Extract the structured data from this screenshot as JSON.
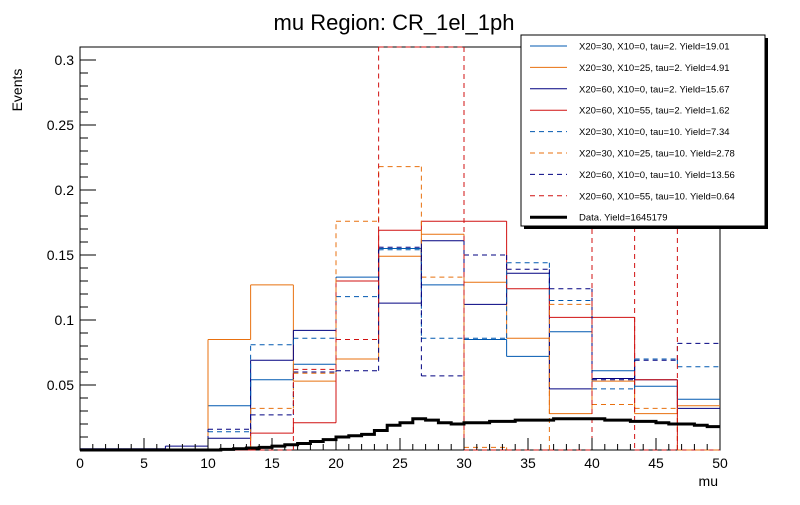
{
  "chart_data": {
    "type": "histogram-steps",
    "title": "mu Region: CR_1el_1ph",
    "xlabel": "mu",
    "ylabel": "Events",
    "xlim": [
      0,
      50
    ],
    "ylim": [
      0,
      0.31
    ],
    "x_ticks": [
      0,
      5,
      10,
      15,
      20,
      25,
      30,
      35,
      40,
      45,
      50
    ],
    "y_ticks": [
      0.05,
      0.1,
      0.15,
      0.2,
      0.25,
      0.3
    ],
    "bin_edges": [
      0,
      3.33,
      6.67,
      10,
      13.33,
      16.67,
      20,
      23.33,
      26.67,
      30,
      33.33,
      36.67,
      40,
      43.33,
      46.67,
      50
    ],
    "series": [
      {
        "name": "X20=30, X10=0, tau=2. Yield=19.01",
        "color": "#0058b0",
        "dash": "solid",
        "values": [
          0,
          0,
          0,
          0.034,
          0.054,
          0.066,
          0.133,
          0.155,
          0.127,
          0.085,
          0.072,
          0.091,
          0.061,
          0.049,
          0.039
        ]
      },
      {
        "name": "X20=30, X10=25, tau=2. Yield=4.91",
        "color": "#e8700f",
        "dash": "solid",
        "values": [
          0,
          0,
          0,
          0.085,
          0.127,
          0.053,
          0.07,
          0.149,
          0.166,
          0.129,
          0.086,
          0.028,
          0.053,
          0.028,
          0.034
        ]
      },
      {
        "name": "X20=60, X10=0, tau=2. Yield=15.67",
        "color": "#000080",
        "dash": "solid",
        "values": [
          0.001,
          0.001,
          0.003,
          0.009,
          0.069,
          0.092,
          0.13,
          0.113,
          0.161,
          0.112,
          0.136,
          0.047,
          0.055,
          0.054,
          0.032
        ]
      },
      {
        "name": "X20=60, X10=55, tau=2. Yield=1.62",
        "color": "#d01010",
        "dash": "solid",
        "values": [
          0,
          0,
          0,
          0,
          0.013,
          0.021,
          0.13,
          0.169,
          0.176,
          0.176,
          0.124,
          0.102,
          0.102,
          0.054,
          0
        ]
      },
      {
        "name": "X20=30, X10=0, tau=10. Yield=7.34",
        "color": "#0058b0",
        "dash": "dashed",
        "values": [
          0,
          0,
          0,
          0.014,
          0.081,
          0.086,
          0.118,
          0.154,
          0.086,
          0.086,
          0.144,
          0.115,
          0.047,
          0.07,
          0.064
        ]
      },
      {
        "name": "X20=30, X10=25, tau=10. Yield=2.78",
        "color": "#e8700f",
        "dash": "dashed",
        "values": [
          0,
          0,
          0,
          0,
          0.032,
          0.059,
          0.176,
          0.218,
          0.133,
          0.002,
          0,
          0.112,
          0.035,
          0.032,
          0
        ]
      },
      {
        "name": "X20=60, X10=0, tau=10. Yield=13.56",
        "color": "#000080",
        "dash": "dashed",
        "values": [
          0,
          0,
          0,
          0.016,
          0.027,
          0.06,
          0.061,
          0.156,
          0.057,
          0.15,
          0.139,
          0.124,
          0.054,
          0.069,
          0.082
        ]
      },
      {
        "name": "X20=60, X10=55, tau=10. Yield=0.64",
        "color": "#d01010",
        "dash": "dashed",
        "values": [
          0,
          0,
          0,
          0,
          0,
          0.062,
          0.085,
          0.31,
          0.31,
          0,
          0,
          0,
          0.31,
          0,
          0.31
        ]
      },
      {
        "name": "Data. Yield=1645179",
        "color": "#000000",
        "dash": "solid",
        "width": 3,
        "fine_x_start": 0,
        "fine_step": 1,
        "values_fine": [
          0,
          0,
          0,
          0,
          0,
          0,
          0,
          0,
          0,
          0,
          0,
          0.0005,
          0.001,
          0.0015,
          0.002,
          0.003,
          0.004,
          0.005,
          0.0065,
          0.008,
          0.01,
          0.011,
          0.012,
          0.015,
          0.019,
          0.021,
          0.024,
          0.023,
          0.021,
          0.02,
          0.021,
          0.021,
          0.022,
          0.022,
          0.023,
          0.023,
          0.023,
          0.024,
          0.024,
          0.024,
          0.024,
          0.023,
          0.023,
          0.022,
          0.022,
          0.021,
          0.02,
          0.02,
          0.019,
          0.018
        ]
      }
    ],
    "legend_position": "top-right"
  }
}
